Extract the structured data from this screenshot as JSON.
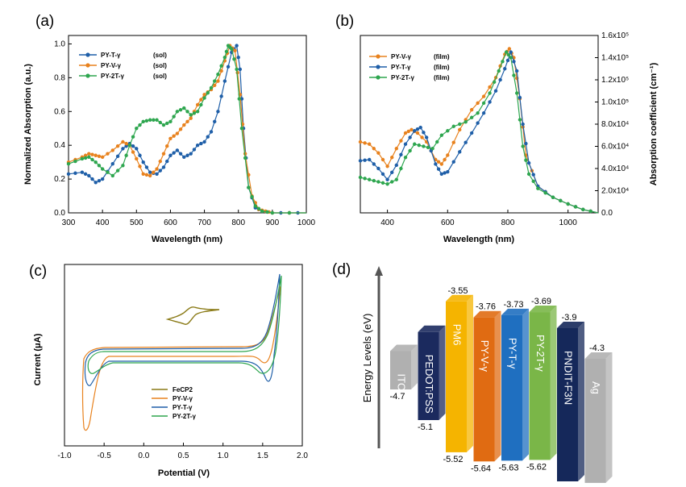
{
  "panels": [
    "(a)",
    "(b)",
    "(c)",
    "(d)"
  ],
  "chart_data": [
    {
      "type": "line",
      "panel": "(a)",
      "xlabel": "Wavelength (nm)",
      "ylabel": "Normalized Absorption (a.u.)",
      "xlim": [
        300,
        1000
      ],
      "ylim": [
        0.0,
        1.05
      ],
      "xticks": [
        300,
        400,
        500,
        600,
        700,
        800,
        900,
        1000
      ],
      "yticks": [
        0.0,
        0.2,
        0.4,
        0.6,
        0.8,
        1.0
      ],
      "ytick_labels": [
        "0.0",
        "0.2",
        "0.4",
        "0.6",
        "0.8",
        "1.0"
      ],
      "legend_position": "top-left",
      "series": [
        {
          "name": "PY-T-γ",
          "suffix": "(sol)",
          "color": "#1f5fa8",
          "x": [
            300,
            340,
            360,
            380,
            400,
            430,
            460,
            480,
            500,
            520,
            540,
            560,
            580,
            600,
            620,
            640,
            660,
            680,
            700,
            720,
            740,
            760,
            780,
            795,
            805,
            815,
            830,
            850,
            870,
            900,
            950,
            1000
          ],
          "y": [
            0.23,
            0.24,
            0.22,
            0.18,
            0.2,
            0.29,
            0.38,
            0.41,
            0.38,
            0.3,
            0.24,
            0.23,
            0.27,
            0.34,
            0.37,
            0.33,
            0.35,
            0.4,
            0.42,
            0.48,
            0.6,
            0.78,
            0.95,
            0.99,
            0.85,
            0.5,
            0.15,
            0.03,
            0.01,
            0.0,
            0.0,
            0.0
          ]
        },
        {
          "name": "PY-V-γ",
          "suffix": "(sol)",
          "color": "#e8821e",
          "x": [
            300,
            340,
            360,
            380,
            400,
            430,
            460,
            480,
            500,
            520,
            540,
            560,
            580,
            600,
            620,
            640,
            660,
            680,
            700,
            720,
            740,
            760,
            775,
            790,
            805,
            820,
            840,
            860,
            880,
            900,
            1000
          ],
          "y": [
            0.3,
            0.33,
            0.35,
            0.34,
            0.33,
            0.37,
            0.42,
            0.4,
            0.32,
            0.23,
            0.22,
            0.26,
            0.35,
            0.44,
            0.47,
            0.52,
            0.56,
            0.64,
            0.7,
            0.73,
            0.78,
            0.9,
            0.99,
            0.96,
            0.7,
            0.35,
            0.1,
            0.02,
            0.01,
            0.0,
            0.0
          ]
        },
        {
          "name": "PY-2T-γ",
          "suffix": "(sol)",
          "color": "#2ea64f",
          "x": [
            300,
            340,
            360,
            380,
            400,
            430,
            460,
            480,
            500,
            520,
            540,
            560,
            580,
            600,
            620,
            640,
            660,
            680,
            700,
            720,
            740,
            760,
            770,
            780,
            795,
            810,
            830,
            850,
            870,
            900,
            1000
          ],
          "y": [
            0.29,
            0.32,
            0.33,
            0.3,
            0.26,
            0.22,
            0.28,
            0.4,
            0.5,
            0.54,
            0.55,
            0.55,
            0.52,
            0.54,
            0.6,
            0.62,
            0.58,
            0.6,
            0.68,
            0.74,
            0.82,
            0.92,
            0.99,
            0.97,
            0.85,
            0.5,
            0.15,
            0.04,
            0.01,
            0.0,
            0.0
          ]
        }
      ]
    },
    {
      "type": "line",
      "panel": "(b)",
      "xlabel": "Wavelength (nm)",
      "ylabel": "Absorption coefficient (cm⁻¹)",
      "xlim": [
        310,
        1100
      ],
      "ylim": [
        0.0,
        160000
      ],
      "xticks": [
        400,
        600,
        800,
        1000
      ],
      "yticks": [
        0,
        20000,
        40000,
        60000,
        80000,
        100000,
        120000,
        140000,
        160000
      ],
      "ytick_labels": [
        "0.0",
        "2.0x10⁴",
        "4.0x10⁴",
        "6.0x10⁴",
        "8.0x10⁴",
        "1.0x10⁵",
        "1.2x10⁵",
        "1.4x10⁵",
        "1.6x10⁵"
      ],
      "legend_position": "top-left",
      "series": [
        {
          "name": "PY-V-γ",
          "suffix": "(film)",
          "color": "#e8821e",
          "x": [
            310,
            340,
            370,
            400,
            430,
            460,
            480,
            500,
            530,
            560,
            580,
            600,
            640,
            680,
            720,
            760,
            790,
            805,
            820,
            840,
            860,
            900,
            950,
            1000,
            1050,
            1100
          ],
          "y": [
            64000,
            62000,
            54000,
            42000,
            58000,
            72000,
            75000,
            72000,
            64000,
            48000,
            44000,
            52000,
            75000,
            93000,
            105000,
            122000,
            143000,
            148000,
            140000,
            103000,
            52000,
            24000,
            14000,
            8000,
            3000,
            0
          ]
        },
        {
          "name": "PY-T-γ",
          "suffix": "(film)",
          "color": "#1f5fa8",
          "x": [
            310,
            340,
            370,
            400,
            430,
            460,
            490,
            510,
            530,
            560,
            580,
            600,
            640,
            680,
            720,
            760,
            790,
            810,
            830,
            850,
            870,
            900,
            950,
            1000,
            1050,
            1100
          ],
          "y": [
            47000,
            48000,
            40000,
            30000,
            43000,
            62000,
            74000,
            77000,
            68000,
            44000,
            35000,
            37000,
            55000,
            72000,
            90000,
            110000,
            130000,
            145000,
            128000,
            80000,
            45000,
            24000,
            14000,
            8000,
            3000,
            0
          ]
        },
        {
          "name": "PY-2T-γ",
          "suffix": "(film)",
          "color": "#2ea64f",
          "x": [
            310,
            340,
            370,
            400,
            430,
            460,
            490,
            520,
            550,
            580,
            620,
            660,
            700,
            740,
            770,
            795,
            810,
            830,
            850,
            870,
            900,
            950,
            1000,
            1050,
            1100
          ],
          "y": [
            32000,
            30000,
            28000,
            26000,
            30000,
            50000,
            62000,
            60000,
            58000,
            70000,
            78000,
            82000,
            90000,
            108000,
            128000,
            145000,
            140000,
            108000,
            60000,
            35000,
            22000,
            14000,
            8000,
            3000,
            0
          ]
        }
      ]
    },
    {
      "type": "line",
      "panel": "(c)",
      "xlabel": "Potential (V)",
      "ylabel": "Current (μA)",
      "xlim": [
        -1.0,
        2.0
      ],
      "xticks": [
        -1.0,
        -0.5,
        0.0,
        0.5,
        1.0,
        1.5,
        2.0
      ],
      "xtick_labels": [
        "-1.0",
        "-0.5",
        "0.0",
        "0.5",
        "1.0",
        "1.5",
        "2.0"
      ],
      "legend_position": "bottom-center",
      "series": [
        {
          "name": "FeCP2",
          "color": "#8a7a16"
        },
        {
          "name": "PY-V-γ",
          "color": "#e8821e"
        },
        {
          "name": "PY-T-γ",
          "color": "#1f5fa8"
        },
        {
          "name": "PY-2T-γ",
          "color": "#2ea64f"
        }
      ]
    },
    {
      "type": "bar",
      "panel": "(d)",
      "ylabel": "Energy Levels (eV)",
      "legend_position": "none",
      "bars": [
        {
          "name": "ITO",
          "top_label": "",
          "bottom_label": "-4.7",
          "top": -4.2,
          "bottom": -4.7,
          "color": "#b0b0b0",
          "text_color": "#ffffff"
        },
        {
          "name": "PEDOT:PSS",
          "top_label": "",
          "bottom_label": "-5.1",
          "top": -3.95,
          "bottom": -5.1,
          "color": "#1b2a5e",
          "text_color": "#ffffff"
        },
        {
          "name": "PM6",
          "top_label": "-3.55",
          "bottom_label": "-5.52",
          "top": -3.55,
          "bottom": -5.52,
          "color": "#f5b400",
          "text_color": "#ffffff"
        },
        {
          "name": "PY-V-γ",
          "top_label": "-3.76",
          "bottom_label": "-5.64",
          "top": -3.76,
          "bottom": -5.64,
          "color": "#e06b12",
          "text_color": "#ffffff"
        },
        {
          "name": "PY-T-γ",
          "top_label": "-3.73",
          "bottom_label": "-5.63",
          "top": -3.73,
          "bottom": -5.63,
          "color": "#1f6fc0",
          "text_color": "#ffffff"
        },
        {
          "name": "PY-2T-γ",
          "top_label": "-3.69",
          "bottom_label": "-5.62",
          "top": -3.69,
          "bottom": -5.62,
          "color": "#7ab648",
          "text_color": "#ffffff"
        },
        {
          "name": "PNDIT-F3N",
          "top_label": "-3.9",
          "bottom_label": "",
          "top": -3.9,
          "bottom": -5.9,
          "color": "#15285a",
          "text_color": "#ffffff"
        },
        {
          "name": "Ag",
          "top_label": "-4.3",
          "bottom_label": "",
          "top": -4.3,
          "bottom": -5.92,
          "color": "#b0b0b0",
          "text_color": "#ffffff"
        }
      ]
    }
  ]
}
